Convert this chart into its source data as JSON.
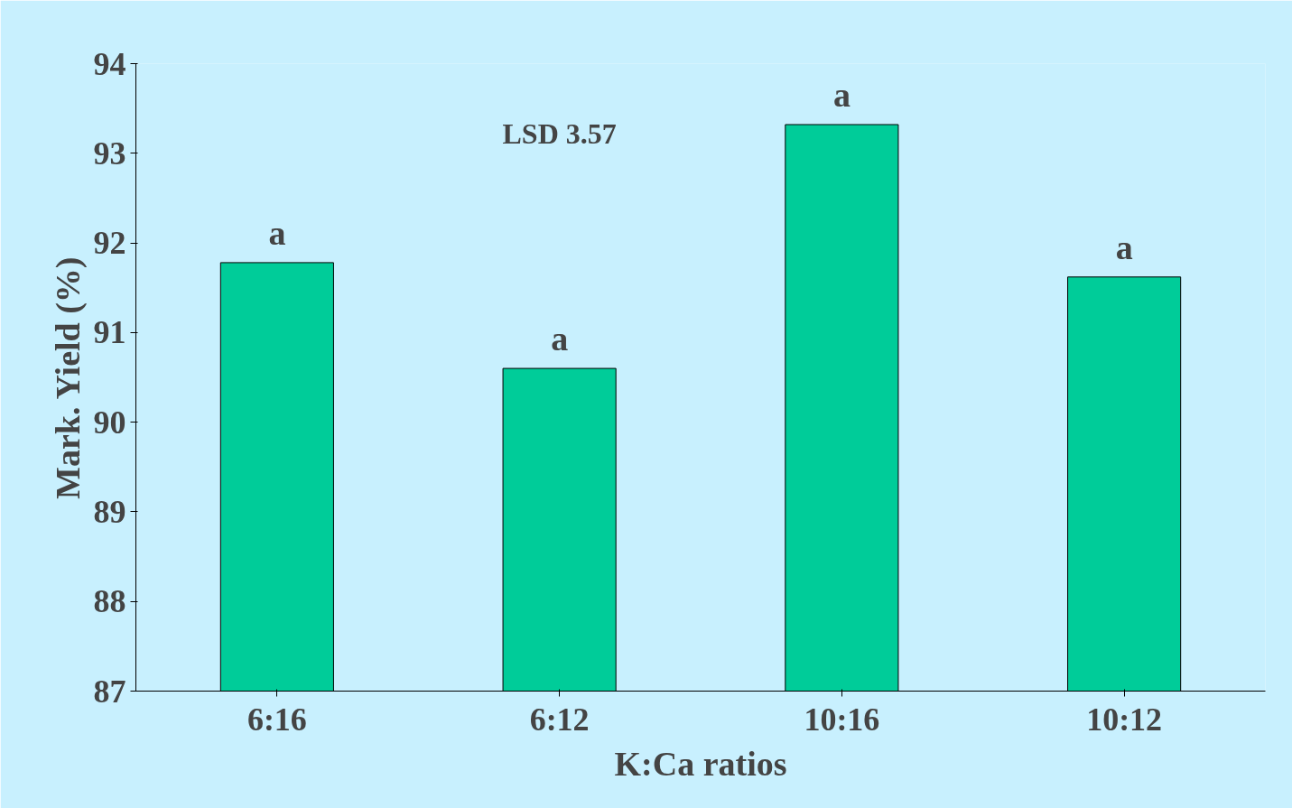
{
  "chart_data": {
    "type": "bar",
    "xlabel": "K:Ca ratios",
    "ylabel": "Mark. Yield (%)",
    "categories": [
      "6:16",
      "6:12",
      "10:16",
      "10:12"
    ],
    "values": [
      91.78,
      90.6,
      93.32,
      91.62
    ],
    "color": "#00cc99",
    "ylim": [
      87,
      94
    ],
    "yticks": [
      87,
      88,
      89,
      90,
      91,
      92,
      93,
      94
    ],
    "grid": false,
    "annotations": [
      {
        "text": "a",
        "x": "6:16",
        "y": 91.78
      },
      {
        "text": "a",
        "x": "6:12",
        "y": 90.6
      },
      {
        "text": "a",
        "x": "10:16",
        "y": 93.32
      },
      {
        "text": "a",
        "x": "10:12",
        "y": 91.62
      },
      "LSD 3.57"
    ]
  }
}
